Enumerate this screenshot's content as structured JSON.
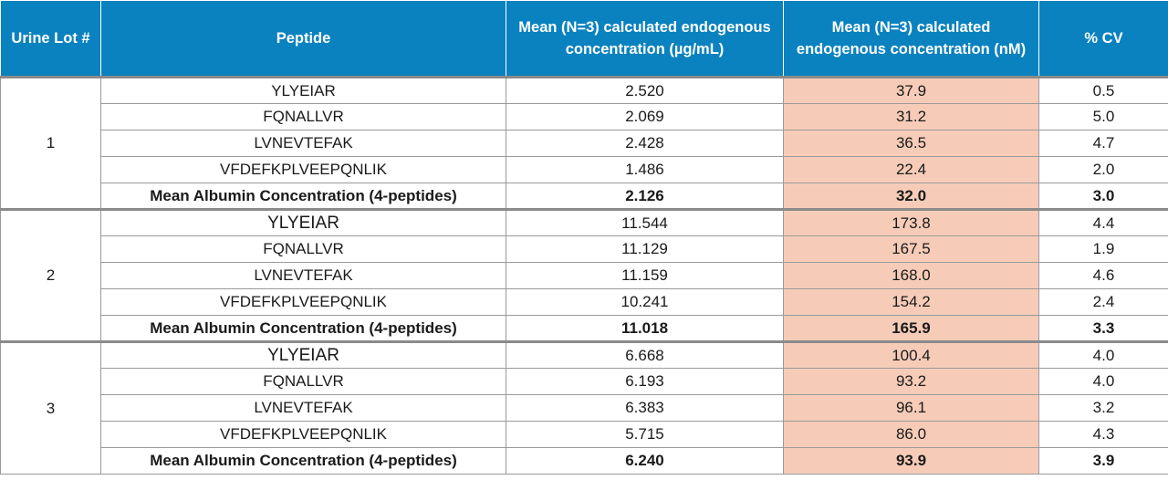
{
  "headers": {
    "lot": "Urine Lot #",
    "peptide": "Peptide",
    "mean_ugml": "Mean (N=3) calculated endogenous concentration (µg/mL)",
    "mean_nm": "Mean (N=3) calculated endogenous concentration (nM)",
    "cv": "% CV"
  },
  "colors": {
    "header_bg": "#0a82bf",
    "nm_highlight": "#f6ccb8"
  },
  "lots": [
    {
      "lot": "1",
      "rows": [
        {
          "peptide": "YLYEIAR",
          "ugml": "2.520",
          "nm": "37.9",
          "cv": "0.5"
        },
        {
          "peptide": "FQNALLVR",
          "ugml": "2.069",
          "nm": "31.2",
          "cv": "5.0"
        },
        {
          "peptide": "LVNEVTEFAK",
          "ugml": "2.428",
          "nm": "36.5",
          "cv": "4.7"
        },
        {
          "peptide": "VFDEFKPLVEEPQNLIK",
          "ugml": "1.486",
          "nm": "22.4",
          "cv": "2.0"
        },
        {
          "peptide": "Mean Albumin Concentration (4-peptides)",
          "ugml": "2.126",
          "nm": "32.0",
          "cv": "3.0"
        }
      ]
    },
    {
      "lot": "2",
      "rows": [
        {
          "peptide": "YLYEIAR",
          "ugml": "11.544",
          "nm": "173.8",
          "cv": "4.4"
        },
        {
          "peptide": "FQNALLVR",
          "ugml": "11.129",
          "nm": "167.5",
          "cv": "1.9"
        },
        {
          "peptide": "LVNEVTEFAK",
          "ugml": "11.159",
          "nm": "168.0",
          "cv": "4.6"
        },
        {
          "peptide": "VFDEFKPLVEEPQNLIK",
          "ugml": "10.241",
          "nm": "154.2",
          "cv": "2.4"
        },
        {
          "peptide": "Mean Albumin Concentration (4-peptides)",
          "ugml": "11.018",
          "nm": "165.9",
          "cv": "3.3"
        }
      ]
    },
    {
      "lot": "3",
      "rows": [
        {
          "peptide": "YLYEIAR",
          "ugml": "6.668",
          "nm": "100.4",
          "cv": "4.0"
        },
        {
          "peptide": "FQNALLVR",
          "ugml": "6.193",
          "nm": "93.2",
          "cv": "4.0"
        },
        {
          "peptide": "LVNEVTEFAK",
          "ugml": "6.383",
          "nm": "96.1",
          "cv": "3.2"
        },
        {
          "peptide": "VFDEFKPLVEEPQNLIK",
          "ugml": "5.715",
          "nm": "86.0",
          "cv": "4.3"
        },
        {
          "peptide": "Mean Albumin Concentration (4-peptides)",
          "ugml": "6.240",
          "nm": "93.9",
          "cv": "3.9"
        }
      ]
    }
  ]
}
